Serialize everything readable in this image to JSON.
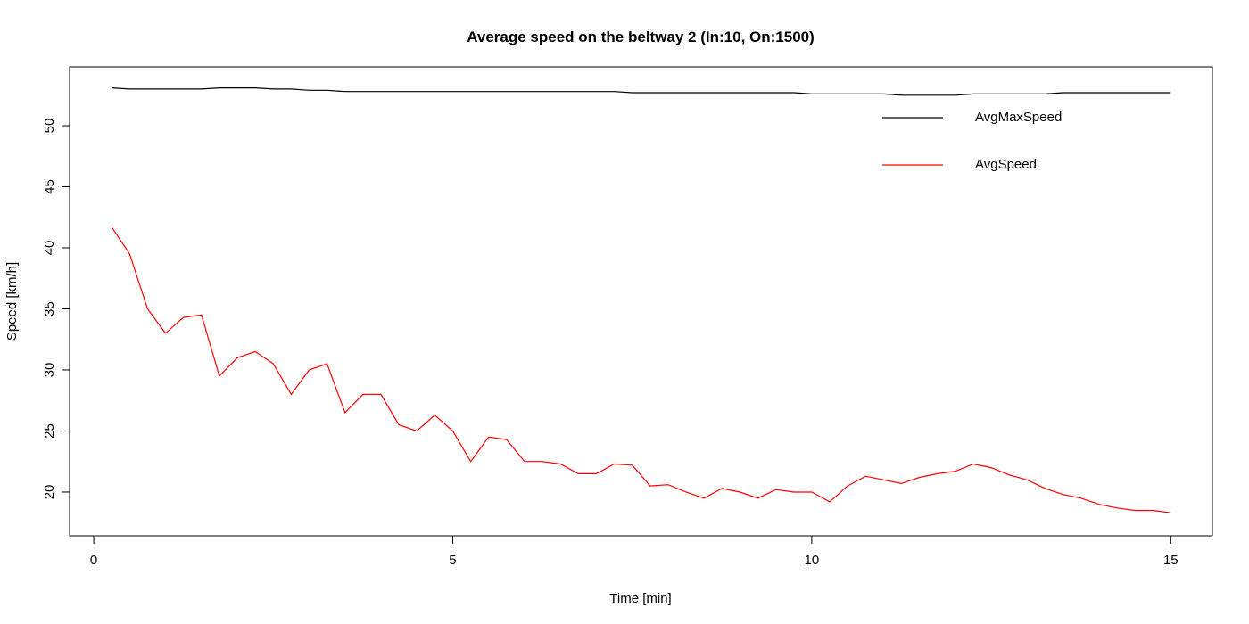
{
  "chart_data": {
    "type": "line",
    "title": "Average speed on the beltway 2 (In:10, On:1500)",
    "xlabel": "Time [min]",
    "ylabel": "Speed [km/h]",
    "x": [
      0.25,
      0.5,
      0.75,
      1,
      1.25,
      1.5,
      1.75,
      2,
      2.25,
      2.5,
      2.75,
      3,
      3.25,
      3.5,
      3.75,
      4,
      4.25,
      4.5,
      4.75,
      5,
      5.25,
      5.5,
      5.75,
      6,
      6.25,
      6.5,
      6.75,
      7,
      7.25,
      7.5,
      7.75,
      8,
      8.25,
      8.5,
      8.75,
      9,
      9.25,
      9.5,
      9.75,
      10,
      10.25,
      10.5,
      10.75,
      11,
      11.25,
      11.5,
      11.75,
      12,
      12.25,
      12.5,
      12.75,
      13,
      13.25,
      13.5,
      13.75,
      14,
      14.25,
      14.5,
      14.75,
      15
    ],
    "series": [
      {
        "name": "AvgMaxSpeed",
        "color": "#000000",
        "values": [
          53.1,
          53.0,
          53.0,
          53.0,
          53.0,
          53.0,
          53.1,
          53.1,
          53.1,
          53.0,
          53.0,
          52.9,
          52.9,
          52.8,
          52.8,
          52.8,
          52.8,
          52.8,
          52.8,
          52.8,
          52.8,
          52.8,
          52.8,
          52.8,
          52.8,
          52.8,
          52.8,
          52.8,
          52.8,
          52.7,
          52.7,
          52.7,
          52.7,
          52.7,
          52.7,
          52.7,
          52.7,
          52.7,
          52.7,
          52.6,
          52.6,
          52.6,
          52.6,
          52.6,
          52.5,
          52.5,
          52.5,
          52.5,
          52.6,
          52.6,
          52.6,
          52.6,
          52.6,
          52.7,
          52.7,
          52.7,
          52.7,
          52.7,
          52.7,
          52.7
        ]
      },
      {
        "name": "AvgSpeed",
        "color": "#ff0000",
        "values": [
          41.7,
          39.5,
          35,
          33,
          34.3,
          34.5,
          29.5,
          31,
          31.5,
          30.5,
          28,
          30,
          30.5,
          26.5,
          28,
          28,
          25.5,
          25,
          26.3,
          25,
          22.5,
          24.5,
          24.3,
          22.5,
          22.5,
          22.3,
          21.5,
          21.5,
          22.3,
          22.2,
          20.5,
          20.6,
          20,
          19.5,
          20.3,
          20,
          19.5,
          20.2,
          20,
          20,
          19.2,
          20.5,
          21.3,
          21,
          20.7,
          21.2,
          21.5,
          21.7,
          22.3,
          22,
          21.4,
          21,
          20.3,
          19.8,
          19.5,
          19,
          18.7,
          18.5,
          18.5,
          18.3
        ]
      }
    ],
    "xlim": [
      -0.336,
      15.58
    ],
    "ylim": [
      16.42,
      54.82
    ],
    "xticks": [
      0,
      5,
      10,
      15
    ],
    "yticks": [
      20,
      25,
      30,
      35,
      40,
      45,
      50
    ],
    "legend": "topright",
    "grid": false
  }
}
